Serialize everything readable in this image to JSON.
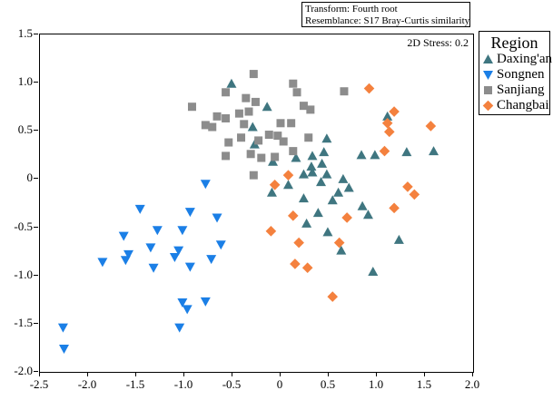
{
  "info_box": {
    "line1": "Transform: Fourth root",
    "line2": "Resemblance: S17 Bray-Curtis similarity"
  },
  "plot": {
    "stress_label": "2D Stress: 0.2"
  },
  "legend": {
    "title": "Region"
  },
  "chart_data": {
    "type": "scatter",
    "title": "",
    "xlabel": "",
    "ylabel": "",
    "grid": false,
    "legend_position": "outside-top-right",
    "annotations": [
      "2D Stress: 0.2",
      "Transform: Fourth root",
      "Resemblance: S17 Bray-Curtis similarity"
    ],
    "x_axis": {
      "range": [
        -2.5,
        2.0
      ],
      "ticks": [
        -2.5,
        -2.0,
        -1.5,
        -1.0,
        -0.5,
        0,
        0.5,
        1.0,
        1.5,
        2.0
      ],
      "tick_labels": [
        "-2.5",
        "-2.0",
        "-1.5",
        "-1.0",
        "-0.5",
        "0",
        "0.5",
        "1.0",
        "1.5",
        "2.0"
      ]
    },
    "y_axis": {
      "range": [
        -2.0,
        1.5
      ],
      "ticks": [
        1.5,
        1.0,
        0.5,
        0,
        -0.5,
        -1.0,
        -1.5,
        -2.0
      ],
      "tick_labels": [
        "1.5",
        "1.0",
        "0.5",
        "0",
        "-0.5",
        "-1.0",
        "-1.5",
        "-2.0"
      ]
    },
    "series": [
      {
        "id": "daxingan",
        "name": "Daxing'an",
        "marker": "triangle-up",
        "color": "#3F7680",
        "points": [
          [
            -0.51,
            0.99
          ],
          [
            -0.14,
            0.75
          ],
          [
            -0.29,
            0.54
          ],
          [
            -0.27,
            0.36
          ],
          [
            -0.08,
            0.18
          ],
          [
            0.16,
            0.22
          ],
          [
            0.33,
            0.24
          ],
          [
            0.32,
            0.13
          ],
          [
            0.43,
            0.16
          ],
          [
            0.48,
            0.42
          ],
          [
            0.45,
            0.28
          ],
          [
            0.24,
            0.05
          ],
          [
            0.33,
            0.07
          ],
          [
            0.48,
            0.05
          ],
          [
            0.42,
            -0.03
          ],
          [
            0.65,
            0.0
          ],
          [
            0.71,
            -0.09
          ],
          [
            0.6,
            -0.14
          ],
          [
            0.54,
            -0.22
          ],
          [
            0.08,
            -0.06
          ],
          [
            -0.09,
            -0.14
          ],
          [
            0.84,
            0.25
          ],
          [
            0.98,
            0.25
          ],
          [
            1.11,
            0.65
          ],
          [
            1.31,
            0.28
          ],
          [
            1.59,
            0.29
          ],
          [
            0.24,
            -0.2
          ],
          [
            0.39,
            -0.35
          ],
          [
            0.27,
            -0.46
          ],
          [
            0.49,
            -0.55
          ],
          [
            0.63,
            -0.74
          ],
          [
            0.85,
            -0.28
          ],
          [
            0.91,
            -0.37
          ],
          [
            1.23,
            -0.63
          ],
          [
            0.96,
            -0.96
          ]
        ]
      },
      {
        "id": "songnen",
        "name": "Songnen",
        "marker": "triangle-down",
        "color": "#1B7FE6",
        "points": [
          [
            -2.26,
            -1.54
          ],
          [
            -2.25,
            -1.76
          ],
          [
            -1.85,
            -0.86
          ],
          [
            -1.63,
            -0.59
          ],
          [
            -1.58,
            -0.78
          ],
          [
            -1.61,
            -0.84
          ],
          [
            -1.46,
            -0.31
          ],
          [
            -1.35,
            -0.71
          ],
          [
            -1.32,
            -0.92
          ],
          [
            -1.28,
            -0.53
          ],
          [
            -1.1,
            -0.81
          ],
          [
            -1.06,
            -0.74
          ],
          [
            -1.02,
            -0.53
          ],
          [
            -0.94,
            -0.34
          ],
          [
            -0.94,
            -0.91
          ],
          [
            -1.02,
            -1.28
          ],
          [
            -0.97,
            -1.35
          ],
          [
            -1.05,
            -1.54
          ],
          [
            -0.78,
            -0.05
          ],
          [
            -0.78,
            -1.27
          ],
          [
            -0.72,
            -0.83
          ],
          [
            -0.66,
            -0.4
          ],
          [
            -0.62,
            -0.68
          ]
        ]
      },
      {
        "id": "sanjiang",
        "name": "Sanjiang",
        "marker": "square",
        "color": "#8C8C8C",
        "points": [
          [
            -0.28,
            1.09
          ],
          [
            0.13,
            0.99
          ],
          [
            0.17,
            0.9
          ],
          [
            0.66,
            0.91
          ],
          [
            -0.57,
            0.9
          ],
          [
            -0.36,
            0.84
          ],
          [
            -0.26,
            0.8
          ],
          [
            -0.92,
            0.75
          ],
          [
            0.24,
            0.76
          ],
          [
            0.31,
            0.72
          ],
          [
            -0.43,
            0.68
          ],
          [
            -0.33,
            0.7
          ],
          [
            -0.66,
            0.65
          ],
          [
            -0.57,
            0.63
          ],
          [
            -0.78,
            0.56
          ],
          [
            -0.71,
            0.54
          ],
          [
            -0.38,
            0.57
          ],
          [
            0.0,
            0.58
          ],
          [
            0.11,
            0.58
          ],
          [
            -0.12,
            0.46
          ],
          [
            -0.03,
            0.45
          ],
          [
            0.03,
            0.39
          ],
          [
            0.29,
            0.43
          ],
          [
            -0.41,
            0.43
          ],
          [
            -0.23,
            0.4
          ],
          [
            -0.54,
            0.38
          ],
          [
            0.13,
            0.29
          ],
          [
            -0.57,
            0.24
          ],
          [
            -0.31,
            0.26
          ],
          [
            -0.2,
            0.22
          ],
          [
            -0.06,
            0.23
          ],
          [
            -0.28,
            0.04
          ]
        ]
      },
      {
        "id": "changbai",
        "name": "Changbai",
        "marker": "diamond",
        "color": "#F4813E",
        "points": [
          [
            0.92,
            0.94
          ],
          [
            1.18,
            0.7
          ],
          [
            1.11,
            0.58
          ],
          [
            1.13,
            0.49
          ],
          [
            1.56,
            0.55
          ],
          [
            1.08,
            0.29
          ],
          [
            1.32,
            -0.08
          ],
          [
            1.39,
            -0.16
          ],
          [
            1.18,
            -0.3
          ],
          [
            0.08,
            0.04
          ],
          [
            -0.06,
            -0.06
          ],
          [
            0.13,
            -0.38
          ],
          [
            0.69,
            -0.4
          ],
          [
            -0.1,
            -0.54
          ],
          [
            0.19,
            -0.66
          ],
          [
            0.61,
            -0.66
          ],
          [
            0.15,
            -0.88
          ],
          [
            0.28,
            -0.92
          ],
          [
            0.54,
            -1.22
          ]
        ]
      }
    ]
  }
}
